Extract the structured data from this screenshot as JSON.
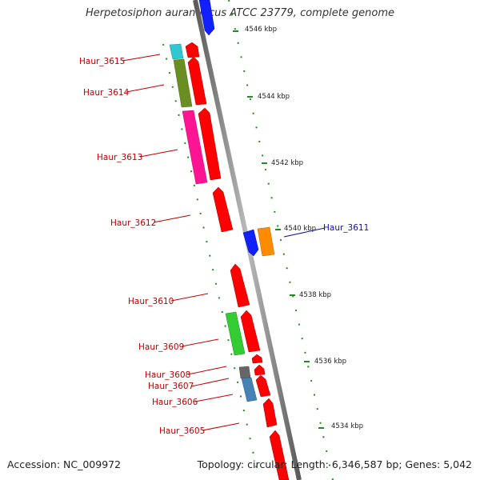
{
  "title": "Herpetosiphon aurantiacus ATCC 23779, complete genome",
  "footer": {
    "accession": "Accession: NC_009972",
    "stats": "Topology: circular; Length: 6,346,587 bp; Genes: 5,042"
  },
  "scale_labels": [
    "4546 kbp",
    "4544 kbp",
    "4542 kbp",
    "4540 kbp",
    "4538 kbp",
    "4536 kbp",
    "4534 kbp"
  ],
  "gene_labels": [
    "Haur_3615",
    "Haur_3614",
    "Haur_3613",
    "Haur_3612",
    "Haur_3611",
    "Haur_3610",
    "Haur_3609",
    "Haur_3608",
    "Haur_3607",
    "Haur_3606",
    "Haur_3605"
  ],
  "colors": {
    "red": "#ff0000",
    "blue": "#1020ff",
    "cyan": "#30c8d0",
    "olive": "#6b8e23",
    "magenta": "#ff1493",
    "orange": "#ff8c00",
    "green": "#33cc33",
    "gray": "#666666",
    "steelblue": "#4682b4",
    "label_red": "#c00000",
    "label_blue": "#1010a0"
  }
}
